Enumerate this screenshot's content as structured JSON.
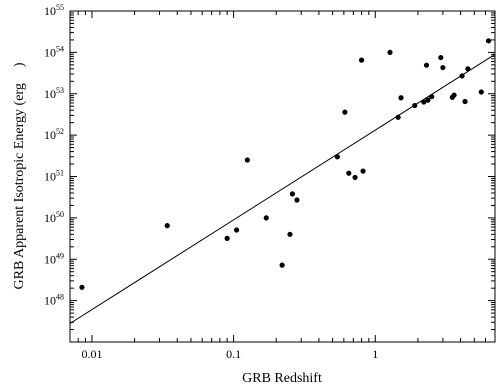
{
  "chart_data": {
    "type": "scatter",
    "title": "",
    "xlabel": "GRB Redshift",
    "ylabel": "GRB Apparent Isotropic Energy (erg",
    "ylabel_close": ")",
    "xscale": "log",
    "yscale": "log",
    "xlim": [
      0.007,
      7.0
    ],
    "ylim": [
      1e+47,
      1e+55
    ],
    "x_ticks": [
      {
        "value": 0.01,
        "label": "0.01"
      },
      {
        "value": 0.1,
        "label": "0.1"
      },
      {
        "value": 1,
        "label": "1"
      }
    ],
    "y_ticks": [
      {
        "value": 1e+48,
        "base": "10",
        "exp": "48"
      },
      {
        "value": 1e+49,
        "base": "10",
        "exp": "49"
      },
      {
        "value": 1e+50,
        "base": "10",
        "exp": "50"
      },
      {
        "value": 1e+51,
        "base": "10",
        "exp": "51"
      },
      {
        "value": 1e+52,
        "base": "10",
        "exp": "52"
      },
      {
        "value": 1e+53,
        "base": "10",
        "exp": "53"
      },
      {
        "value": 1e+54,
        "base": "10",
        "exp": "54"
      },
      {
        "value": 1e+55,
        "base": "10",
        "exp": "55"
      }
    ],
    "grid": false,
    "legend": "none",
    "points": [
      {
        "x": 0.0085,
        "y": 2.1e+48
      },
      {
        "x": 0.034,
        "y": 6.5e+49
      },
      {
        "x": 0.09,
        "y": 3.2e+49
      },
      {
        "x": 0.105,
        "y": 5.1e+49
      },
      {
        "x": 0.125,
        "y": 2.5e+51
      },
      {
        "x": 0.17,
        "y": 1e+50
      },
      {
        "x": 0.22,
        "y": 7.2e+48
      },
      {
        "x": 0.25,
        "y": 4e+49
      },
      {
        "x": 0.26,
        "y": 3.8e+50
      },
      {
        "x": 0.28,
        "y": 2.7e+50
      },
      {
        "x": 0.54,
        "y": 3e+51
      },
      {
        "x": 0.61,
        "y": 3.6e+52
      },
      {
        "x": 0.65,
        "y": 1.2e+51
      },
      {
        "x": 0.72,
        "y": 9.5e+50
      },
      {
        "x": 0.8,
        "y": 6.5e+53
      },
      {
        "x": 0.82,
        "y": 1.35e+51
      },
      {
        "x": 1.27,
        "y": 1e+54
      },
      {
        "x": 1.45,
        "y": 2.7e+52
      },
      {
        "x": 1.52,
        "y": 8e+52
      },
      {
        "x": 1.9,
        "y": 5.2e+52
      },
      {
        "x": 2.2,
        "y": 6.3e+52
      },
      {
        "x": 2.3,
        "y": 4.9e+53
      },
      {
        "x": 2.35,
        "y": 7e+52
      },
      {
        "x": 2.5,
        "y": 8.5e+52
      },
      {
        "x": 2.9,
        "y": 7.5e+53
      },
      {
        "x": 3.0,
        "y": 4.3e+53
      },
      {
        "x": 3.5,
        "y": 8.2e+52
      },
      {
        "x": 3.6,
        "y": 9.3e+52
      },
      {
        "x": 4.1,
        "y": 2.7e+53
      },
      {
        "x": 4.3,
        "y": 6.5e+52
      },
      {
        "x": 4.5,
        "y": 4e+53
      },
      {
        "x": 5.6,
        "y": 1.1e+53
      },
      {
        "x": 6.3,
        "y": 1.9e+54
      }
    ],
    "fit_line": {
      "x": [
        0.007,
        7.0
      ],
      "y": [
        2.8e+47,
        9e+53
      ]
    }
  }
}
